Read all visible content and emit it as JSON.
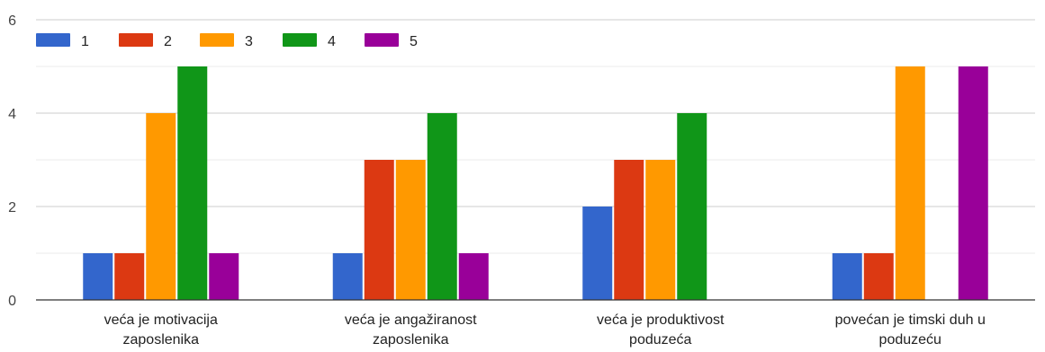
{
  "chart_data": {
    "type": "bar",
    "title": "",
    "xlabel": "",
    "ylabel": "",
    "ylim": [
      0,
      6
    ],
    "yticks": [
      0,
      2,
      4,
      6
    ],
    "minor_gridlines": true,
    "legend_position": "top-left",
    "categories": [
      [
        "veća je motivacija",
        "zaposlenika"
      ],
      [
        "veća je angažiranost",
        "zaposlenika"
      ],
      [
        "veća je produktivost",
        "poduzeća"
      ],
      [
        "povećan je timski duh u",
        "poduzeću"
      ]
    ],
    "series": [
      {
        "name": "1",
        "color": "#3366cc",
        "values": [
          1,
          1,
          2,
          1
        ]
      },
      {
        "name": "2",
        "color": "#dc3912",
        "values": [
          1,
          3,
          3,
          1
        ]
      },
      {
        "name": "3",
        "color": "#ff9900",
        "values": [
          4,
          3,
          3,
          5
        ]
      },
      {
        "name": "4",
        "color": "#109618",
        "values": [
          5,
          4,
          4,
          0
        ]
      },
      {
        "name": "5",
        "color": "#990099",
        "values": [
          1,
          1,
          0,
          5
        ]
      }
    ]
  }
}
